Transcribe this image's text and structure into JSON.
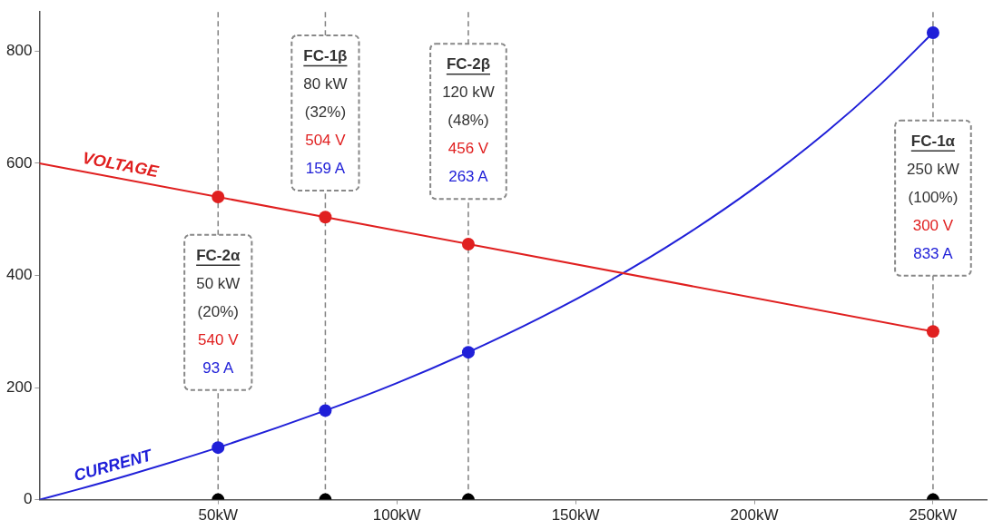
{
  "chart_data": {
    "type": "line",
    "xlim": [
      0,
      265
    ],
    "xticks": [
      {
        "value": 50,
        "label": "50kW"
      },
      {
        "value": 100,
        "label": "100kW"
      },
      {
        "value": 150,
        "label": "150kW"
      },
      {
        "value": 200,
        "label": "200kW"
      },
      {
        "value": 250,
        "label": "250kW"
      }
    ],
    "ylim": [
      0,
      870
    ],
    "yticks": [
      0,
      200,
      400,
      600,
      800
    ],
    "grid": false,
    "legend": false,
    "series": [
      {
        "name": "VOLTAGE",
        "color": "#e02020",
        "x": [
          0,
          250
        ],
        "values": [
          600,
          300
        ]
      },
      {
        "type": "scatter",
        "color": "#e02020",
        "x": [
          50,
          80,
          120,
          250
        ],
        "values": [
          540,
          504,
          456,
          300
        ]
      },
      {
        "name": "CURRENT",
        "color": "#2020d8",
        "x": [
          0,
          10,
          25,
          50,
          80,
          100,
          120,
          140,
          160,
          180,
          200,
          220,
          235,
          250
        ],
        "values": [
          0,
          17,
          44,
          93,
          159,
          208,
          263,
          324,
          392,
          469,
          556,
          655,
          739,
          833
        ]
      },
      {
        "type": "scatter",
        "color": "#2020d8",
        "x": [
          50,
          80,
          120,
          250
        ],
        "values": [
          93,
          159,
          263,
          833
        ]
      },
      {
        "type": "scatter",
        "color": "#000000",
        "x": [
          50,
          80,
          120,
          250
        ],
        "values": [
          0,
          0,
          0,
          0
        ]
      }
    ],
    "ref_lines": [
      {
        "axis": "x",
        "value": 50,
        "color": "#808080",
        "line_style": "dashed"
      },
      {
        "axis": "x",
        "value": 80,
        "color": "#808080",
        "line_style": "dashed"
      },
      {
        "axis": "x",
        "value": 120,
        "color": "#808080",
        "line_style": "dashed"
      },
      {
        "axis": "x",
        "value": 250,
        "color": "#808080",
        "line_style": "dashed"
      }
    ],
    "annotations": [
      {
        "text": "FC-2α\n50 kW\n(20%)\n540 V\n93 A",
        "x": 50,
        "y": 334
      },
      {
        "text": "FC-1β\n80 kW\n(32%)\n504 V\n159 A",
        "x": 80,
        "y": 690
      },
      {
        "text": "FC-2β\n120 kW\n(48%)\n456 V\n263 A",
        "x": 120,
        "y": 675
      },
      {
        "text": "FC-1α\n250 kW\n(100%)\n300 V\n833 A",
        "x": 250,
        "y": 538
      }
    ]
  }
}
